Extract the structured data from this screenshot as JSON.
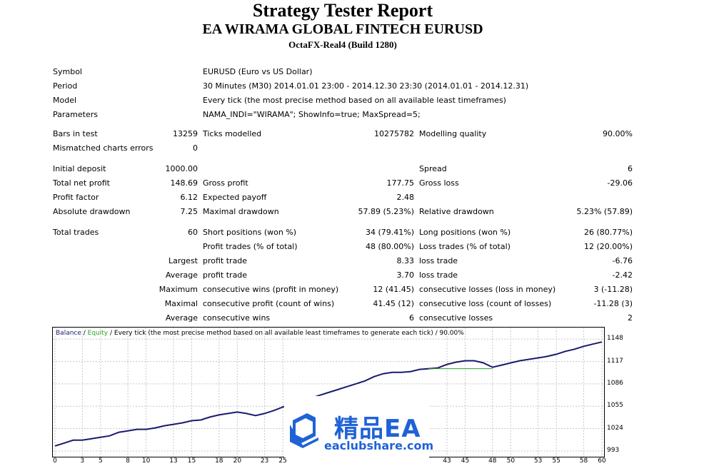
{
  "report": {
    "title": "Strategy Tester Report",
    "ea_name": "EA WIRAMA GLOBAL FINTECH EURUSD",
    "server": "OctaFX-Real4 (Build 1280)"
  },
  "info": {
    "symbol_label": "Symbol",
    "symbol": "EURUSD (Euro vs US Dollar)",
    "period_label": "Period",
    "period": "30 Minutes (M30) 2014.01.01 23:00 - 2014.12.30 23:30 (2014.01.01 - 2014.12.31)",
    "model_label": "Model",
    "model": "Every tick (the most precise method based on all available least timeframes)",
    "parameters_label": "Parameters",
    "parameters": "NAMA_INDI=\"WIRAMA\"; ShowInfo=true; MaxSpread=5;"
  },
  "stats": {
    "bars_label": "Bars in test",
    "bars": "13259",
    "ticks_label": "Ticks modelled",
    "ticks": "10275782",
    "quality_label": "Modelling quality",
    "quality": "90.00%",
    "mismatch_label": "Mismatched charts errors",
    "mismatch": "0",
    "deposit_label": "Initial deposit",
    "deposit": "1000.00",
    "spread_label": "Spread",
    "spread": "6",
    "net_label": "Total net profit",
    "net": "148.69",
    "gross_profit_label": "Gross profit",
    "gross_profit": "177.75",
    "gross_loss_label": "Gross loss",
    "gross_loss": "-29.06",
    "pf_label": "Profit factor",
    "pf": "6.12",
    "payoff_label": "Expected payoff",
    "payoff": "2.48",
    "abs_dd_label": "Absolute drawdown",
    "abs_dd": "7.25",
    "max_dd_label": "Maximal drawdown",
    "max_dd": "57.89 (5.23%)",
    "rel_dd_label": "Relative drawdown",
    "rel_dd": "5.23% (57.89)"
  },
  "trades": {
    "total_label": "Total trades",
    "total": "60",
    "short_label": "Short positions (won %)",
    "short": "34 (79.41%)",
    "long_label": "Long positions (won %)",
    "long": "26 (80.77%)",
    "profit_trades_label": "Profit trades (% of total)",
    "profit_trades": "48 (80.00%)",
    "loss_trades_label": "Loss trades (% of total)",
    "loss_trades": "12 (20.00%)",
    "largest_label": "Largest",
    "avg_label": "Average",
    "maximum_label": "Maximum",
    "maximal_label": "Maximal",
    "average2_label": "Average",
    "profit_trade_label": "profit trade",
    "largest_profit": "8.33",
    "loss_trade_label": "loss trade",
    "largest_loss": "-6.76",
    "avg_profit_label": "profit trade",
    "avg_profit": "3.70",
    "avg_loss_label": "loss trade",
    "avg_loss": "-2.42",
    "cons_wins_money_label": "consecutive wins (profit in money)",
    "cons_wins_money": "12 (41.45)",
    "cons_losses_money_label": "consecutive losses (loss in money)",
    "cons_losses_money": "3 (-11.28)",
    "cons_profit_count_label": "consecutive profit (count of wins)",
    "cons_profit_count": "41.45 (12)",
    "cons_loss_count_label": "consecutive loss (count of losses)",
    "cons_loss_count": "-11.28 (3)",
    "avg_cons_wins_label": "consecutive wins",
    "avg_cons_wins": "6",
    "avg_cons_losses_label": "consecutive losses",
    "avg_cons_losses": "2"
  },
  "chart_legend": {
    "balance": "Balance",
    "sep1": " / ",
    "equity": "Equity",
    "rest": " / Every tick (the most precise method based on all available least timeframes to generate each tick) / 90.00%"
  },
  "watermark": {
    "brand": "精品EA",
    "site": "eaclubshare.com"
  },
  "colors": {
    "balance": "#1a1a6e",
    "equity": "#2aa02a",
    "grid": "#c8c8c8"
  },
  "chart_data": {
    "type": "line",
    "yticks": [
      993,
      1024,
      1055,
      1086,
      1117,
      1148
    ],
    "xticks": [
      0,
      3,
      5,
      8,
      10,
      13,
      15,
      18,
      20,
      23,
      25,
      43,
      45,
      48,
      50,
      53,
      55,
      58,
      60
    ],
    "ylim": [
      993,
      1160
    ],
    "xlim": [
      0,
      60
    ],
    "series": [
      {
        "name": "Balance",
        "x": [
          0,
          1,
          2,
          3,
          4,
          5,
          6,
          7,
          8,
          9,
          10,
          11,
          12,
          13,
          14,
          15,
          16,
          17,
          18,
          19,
          20,
          21,
          22,
          23,
          24,
          25,
          26,
          27,
          28,
          29,
          30,
          31,
          32,
          33,
          34,
          35,
          36,
          37,
          38,
          39,
          40,
          41,
          42,
          43,
          44,
          45,
          46,
          47,
          48,
          49,
          50,
          51,
          52,
          53,
          54,
          55,
          56,
          57,
          58,
          59,
          60
        ],
        "values": [
          1000,
          1004,
          1008,
          1008,
          1010,
          1012,
          1014,
          1019,
          1021,
          1023,
          1023,
          1025,
          1028,
          1030,
          1032,
          1035,
          1036,
          1040,
          1043,
          1045,
          1047,
          1045,
          1042,
          1045,
          1049,
          1054,
          1058,
          1062,
          1066,
          1070,
          1074,
          1078,
          1082,
          1086,
          1090,
          1096,
          1100,
          1102,
          1102,
          1103,
          1106,
          1107,
          1108,
          1113,
          1116,
          1118,
          1118,
          1115,
          1109,
          1112,
          1115,
          1118,
          1120,
          1122,
          1124,
          1127,
          1131,
          1134,
          1138,
          1141,
          1144
        ]
      },
      {
        "name": "Equity",
        "x": [
          41,
          48
        ],
        "values": [
          1107,
          1107
        ]
      }
    ]
  }
}
